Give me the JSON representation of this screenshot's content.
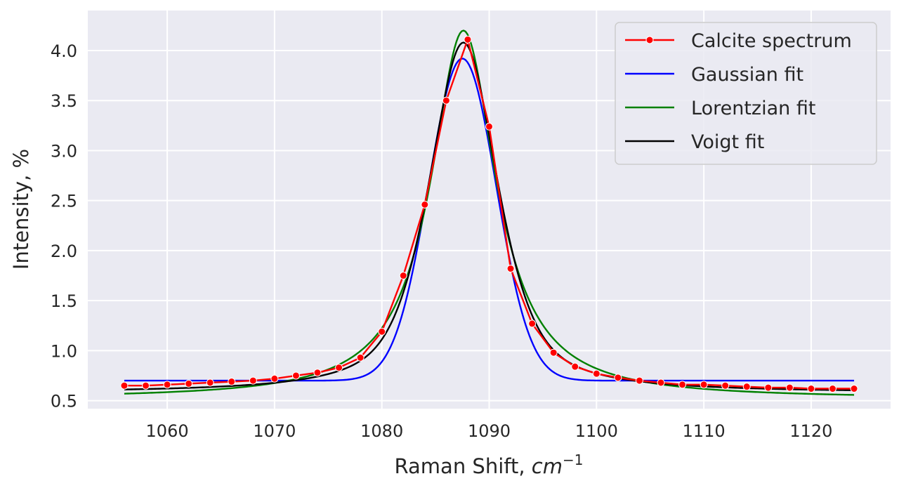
{
  "chart_data": {
    "type": "line",
    "xlabel_text": "Raman Shift, ",
    "xlabel_unit": "cm",
    "xlabel_exponent": "−1",
    "ylabel": "Intensity, %",
    "xlim": [
      1052.6,
      1127.4
    ],
    "ylim": [
      0.42,
      4.4
    ],
    "x_ticks": [
      1060,
      1070,
      1080,
      1090,
      1100,
      1110,
      1120
    ],
    "x_tick_labels": [
      "1060",
      "1070",
      "1080",
      "1090",
      "1100",
      "1110",
      "1120"
    ],
    "y_ticks": [
      0.5,
      1.0,
      1.5,
      2.0,
      2.5,
      3.0,
      3.5,
      4.0
    ],
    "y_tick_labels": [
      "0.5",
      "1.0",
      "1.5",
      "2.0",
      "2.5",
      "3.0",
      "3.5",
      "4.0"
    ],
    "grid": true,
    "legend_position": "top-right",
    "colors": {
      "background": "#eaeaf2",
      "grid": "#ffffff",
      "spectrum": "#ff0000",
      "gaussian": "#0000ff",
      "lorentzian": "#008000",
      "voigt": "#000000"
    },
    "series": [
      {
        "name": "Calcite spectrum",
        "style": "line-markers",
        "color": "#ff0000",
        "x": [
          1056,
          1058,
          1060,
          1062,
          1064,
          1066,
          1068,
          1070,
          1072,
          1074,
          1076,
          1078,
          1080,
          1082,
          1084,
          1086,
          1088,
          1090,
          1092,
          1094,
          1096,
          1098,
          1100,
          1102,
          1104,
          1106,
          1108,
          1110,
          1112,
          1114,
          1116,
          1118,
          1120,
          1122,
          1124
        ],
        "y": [
          0.65,
          0.65,
          0.66,
          0.67,
          0.68,
          0.69,
          0.7,
          0.72,
          0.75,
          0.78,
          0.83,
          0.93,
          1.19,
          1.75,
          2.46,
          3.5,
          4.11,
          3.24,
          1.82,
          1.27,
          0.98,
          0.84,
          0.77,
          0.73,
          0.7,
          0.68,
          0.66,
          0.66,
          0.65,
          0.64,
          0.63,
          0.63,
          0.62,
          0.62,
          0.62
        ]
      },
      {
        "name": "Gaussian fit",
        "style": "line",
        "color": "#0000ff",
        "model": "gaussian",
        "params": {
          "baseline": 0.7,
          "amplitude": 3.22,
          "center": 1087.5,
          "sigma": 3.15
        },
        "x_range": [
          1056,
          1124
        ]
      },
      {
        "name": "Lorentzian fit",
        "style": "line",
        "color": "#008000",
        "model": "lorentzian",
        "params": {
          "baseline": 0.52,
          "amplitude": 3.68,
          "center": 1087.6,
          "hwhm": 3.7
        },
        "x_range": [
          1056,
          1124
        ]
      },
      {
        "name": "Voigt fit",
        "style": "line",
        "color": "#000000",
        "model": "pseudo-voigt",
        "params": {
          "baseline": 0.58,
          "amplitude": 3.5,
          "center": 1087.6,
          "hwhm": 3.85,
          "eta": 0.62
        },
        "x_range": [
          1056,
          1124
        ]
      }
    ]
  }
}
